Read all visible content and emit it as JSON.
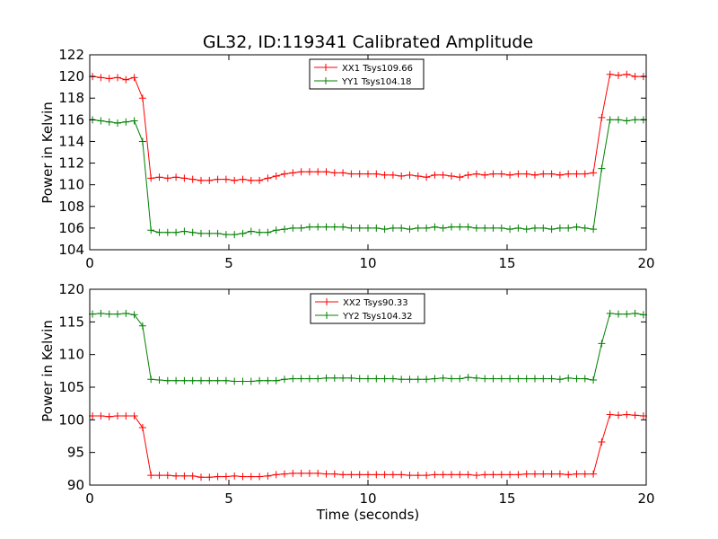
{
  "chart_data": [
    {
      "type": "line",
      "title": "GL32, ID:119341 Calibrated Amplitude",
      "xlabel": "",
      "ylabel": "Power in Kelvin",
      "xlim": [
        0,
        20
      ],
      "ylim": [
        104,
        122
      ],
      "xticks": [
        0,
        5,
        10,
        15,
        20
      ],
      "yticks": [
        104,
        106,
        108,
        110,
        112,
        114,
        116,
        118,
        120,
        122
      ],
      "grid": false,
      "legend_position": "top-center",
      "x": [
        0.1,
        0.4,
        0.7,
        1.0,
        1.3,
        1.6,
        1.9,
        2.2,
        2.5,
        2.8,
        3.1,
        3.4,
        3.7,
        4.0,
        4.3,
        4.6,
        4.9,
        5.2,
        5.5,
        5.8,
        6.1,
        6.4,
        6.7,
        7.0,
        7.3,
        7.6,
        7.9,
        8.2,
        8.5,
        8.8,
        9.1,
        9.4,
        9.7,
        10.0,
        10.3,
        10.6,
        10.9,
        11.2,
        11.5,
        11.8,
        12.1,
        12.4,
        12.7,
        13.0,
        13.3,
        13.6,
        13.9,
        14.2,
        14.5,
        14.8,
        15.1,
        15.4,
        15.7,
        16.0,
        16.3,
        16.6,
        16.9,
        17.2,
        17.5,
        17.8,
        18.1,
        18.4,
        18.7,
        19.0,
        19.3,
        19.6,
        19.9
      ],
      "series": [
        {
          "name": "XX1 Tsys109.66",
          "color": "#ff0000",
          "values": [
            120.0,
            119.9,
            119.8,
            119.9,
            119.7,
            119.9,
            118.0,
            110.6,
            110.7,
            110.6,
            110.7,
            110.6,
            110.5,
            110.4,
            110.4,
            110.5,
            110.5,
            110.4,
            110.5,
            110.4,
            110.4,
            110.6,
            110.8,
            111.0,
            111.1,
            111.2,
            111.2,
            111.2,
            111.2,
            111.1,
            111.1,
            111.0,
            111.0,
            111.0,
            111.0,
            110.9,
            110.9,
            110.8,
            110.9,
            110.8,
            110.7,
            110.9,
            110.9,
            110.8,
            110.7,
            110.9,
            111.0,
            110.9,
            111.0,
            111.0,
            110.9,
            111.0,
            111.0,
            110.9,
            111.0,
            111.0,
            110.9,
            111.0,
            111.0,
            111.0,
            111.1,
            116.2,
            120.2,
            120.1,
            120.2,
            120.0,
            120.0
          ]
        },
        {
          "name": "YY1 Tsys104.18",
          "color": "#008000",
          "values": [
            116.0,
            115.9,
            115.8,
            115.7,
            115.8,
            115.9,
            114.0,
            105.8,
            105.6,
            105.6,
            105.6,
            105.7,
            105.6,
            105.5,
            105.5,
            105.5,
            105.4,
            105.4,
            105.5,
            105.7,
            105.6,
            105.6,
            105.8,
            105.9,
            106.0,
            106.0,
            106.1,
            106.1,
            106.1,
            106.1,
            106.1,
            106.0,
            106.0,
            106.0,
            106.0,
            105.9,
            106.0,
            106.0,
            105.9,
            106.0,
            106.0,
            106.1,
            106.0,
            106.1,
            106.1,
            106.1,
            106.0,
            106.0,
            106.0,
            106.0,
            105.9,
            106.0,
            105.9,
            106.0,
            106.0,
            105.9,
            106.0,
            106.0,
            106.1,
            106.0,
            105.9,
            111.5,
            116.0,
            116.0,
            115.9,
            116.0,
            116.0
          ]
        }
      ]
    },
    {
      "type": "line",
      "title": "",
      "xlabel": "Time (seconds)",
      "ylabel": "Power in Kelvin",
      "xlim": [
        0,
        20
      ],
      "ylim": [
        90,
        120
      ],
      "xticks": [
        0,
        5,
        10,
        15,
        20
      ],
      "yticks": [
        90,
        95,
        100,
        105,
        110,
        115,
        120
      ],
      "grid": false,
      "legend_position": "top-center",
      "x": [
        0.1,
        0.4,
        0.7,
        1.0,
        1.3,
        1.6,
        1.9,
        2.2,
        2.5,
        2.8,
        3.1,
        3.4,
        3.7,
        4.0,
        4.3,
        4.6,
        4.9,
        5.2,
        5.5,
        5.8,
        6.1,
        6.4,
        6.7,
        7.0,
        7.3,
        7.6,
        7.9,
        8.2,
        8.5,
        8.8,
        9.1,
        9.4,
        9.7,
        10.0,
        10.3,
        10.6,
        10.9,
        11.2,
        11.5,
        11.8,
        12.1,
        12.4,
        12.7,
        13.0,
        13.3,
        13.6,
        13.9,
        14.2,
        14.5,
        14.8,
        15.1,
        15.4,
        15.7,
        16.0,
        16.3,
        16.6,
        16.9,
        17.2,
        17.5,
        17.8,
        18.1,
        18.4,
        18.7,
        19.0,
        19.3,
        19.6,
        19.9
      ],
      "series": [
        {
          "name": "XX2 Tsys90.33",
          "color": "#ff0000",
          "values": [
            100.6,
            100.6,
            100.5,
            100.6,
            100.6,
            100.6,
            98.8,
            91.5,
            91.5,
            91.5,
            91.4,
            91.4,
            91.4,
            91.2,
            91.2,
            91.3,
            91.3,
            91.4,
            91.3,
            91.3,
            91.3,
            91.4,
            91.6,
            91.7,
            91.8,
            91.8,
            91.8,
            91.8,
            91.7,
            91.7,
            91.6,
            91.6,
            91.6,
            91.6,
            91.6,
            91.6,
            91.6,
            91.6,
            91.5,
            91.5,
            91.5,
            91.6,
            91.6,
            91.6,
            91.6,
            91.6,
            91.5,
            91.6,
            91.6,
            91.6,
            91.6,
            91.6,
            91.7,
            91.7,
            91.7,
            91.7,
            91.7,
            91.6,
            91.7,
            91.7,
            91.7,
            96.6,
            100.8,
            100.7,
            100.8,
            100.7,
            100.6
          ]
        },
        {
          "name": "YY2 Tsys104.32",
          "color": "#008000",
          "values": [
            116.2,
            116.3,
            116.2,
            116.2,
            116.3,
            116.1,
            114.4,
            106.2,
            106.1,
            106.0,
            106.0,
            106.0,
            106.0,
            106.0,
            106.0,
            106.0,
            106.0,
            105.9,
            105.9,
            105.9,
            106.0,
            106.0,
            106.0,
            106.2,
            106.3,
            106.3,
            106.3,
            106.3,
            106.4,
            106.4,
            106.4,
            106.4,
            106.3,
            106.3,
            106.3,
            106.3,
            106.3,
            106.2,
            106.2,
            106.2,
            106.2,
            106.3,
            106.4,
            106.3,
            106.3,
            106.5,
            106.4,
            106.3,
            106.3,
            106.3,
            106.3,
            106.3,
            106.3,
            106.3,
            106.3,
            106.3,
            106.2,
            106.4,
            106.3,
            106.3,
            106.1,
            111.7,
            116.3,
            116.2,
            116.2,
            116.3,
            116.1
          ]
        }
      ]
    }
  ]
}
